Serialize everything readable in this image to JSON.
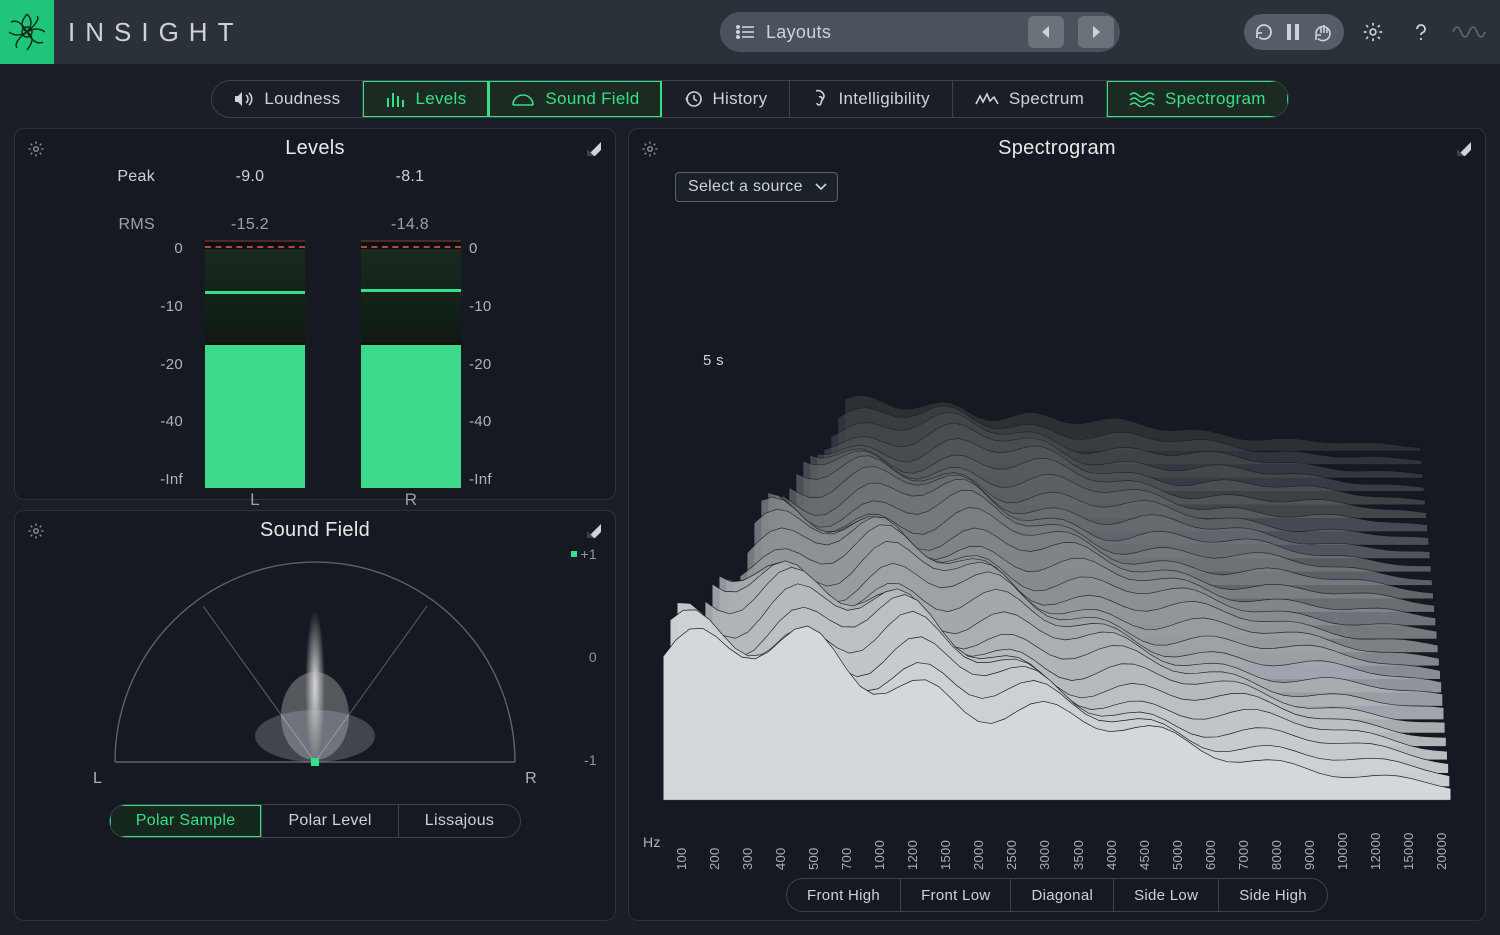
{
  "app": {
    "title": "INSIGHT"
  },
  "colors": {
    "accent": "#35e08a",
    "bg": "#1a1f26",
    "panel": "#141a20",
    "grid": "#3a424b",
    "text": "#cfd3d7"
  },
  "layouts": {
    "label": "Layouts"
  },
  "tabs": [
    {
      "id": "loudness",
      "label": "Loudness",
      "active": false
    },
    {
      "id": "levels",
      "label": "Levels",
      "active": true
    },
    {
      "id": "soundfield",
      "label": "Sound Field",
      "active": true
    },
    {
      "id": "history",
      "label": "History",
      "active": false
    },
    {
      "id": "intelligibility",
      "label": "Intelligibility",
      "active": false
    },
    {
      "id": "spectrum",
      "label": "Spectrum",
      "active": false
    },
    {
      "id": "spectrogram",
      "label": "Spectrogram",
      "active": true
    }
  ],
  "levels": {
    "title": "Levels",
    "peak_label": "Peak",
    "rms_label": "RMS",
    "channels": [
      "L",
      "R"
    ],
    "peak": [
      "-9.0",
      "-8.1"
    ],
    "rms": [
      "-15.2",
      "-14.8"
    ],
    "scale_ticks": [
      "0",
      "-10",
      "-20",
      "-40",
      "-Inf"
    ],
    "meter_style": {
      "peak_fill_percent": [
        58,
        58
      ],
      "rms_line_percent": [
        20,
        19
      ],
      "dark_top_percent": [
        3,
        3
      ],
      "dark_height_percent": [
        38,
        38
      ],
      "bar_color": "#3ed98a",
      "rms_line_color": "#35e08a",
      "dash_color": "#b54444"
    }
  },
  "soundfield": {
    "title": "Sound Field",
    "axis": [
      "+1",
      "0",
      "-1"
    ],
    "lr": [
      "L",
      "R"
    ],
    "modes": [
      {
        "label": "Polar Sample",
        "active": true
      },
      {
        "label": "Polar Level",
        "active": false
      },
      {
        "label": "Lissajous",
        "active": false
      }
    ]
  },
  "spectrogram": {
    "title": "Spectrogram",
    "source_placeholder": "Select a source",
    "time_label": "5 s",
    "hz_label": "Hz",
    "freq_ticks": [
      "100",
      "200",
      "300",
      "400",
      "500",
      "700",
      "1000",
      "1200",
      "1500",
      "2000",
      "2500",
      "3000",
      "3500",
      "4000",
      "4500",
      "5000",
      "6000",
      "7000",
      "8000",
      "9000",
      "10000",
      "12000",
      "15000",
      "20000"
    ],
    "views": [
      {
        "label": "Front High",
        "active": false
      },
      {
        "label": "Front Low",
        "active": false
      },
      {
        "label": "Diagonal",
        "active": false
      },
      {
        "label": "Side Low",
        "active": false
      },
      {
        "label": "Side High",
        "active": false
      }
    ]
  }
}
